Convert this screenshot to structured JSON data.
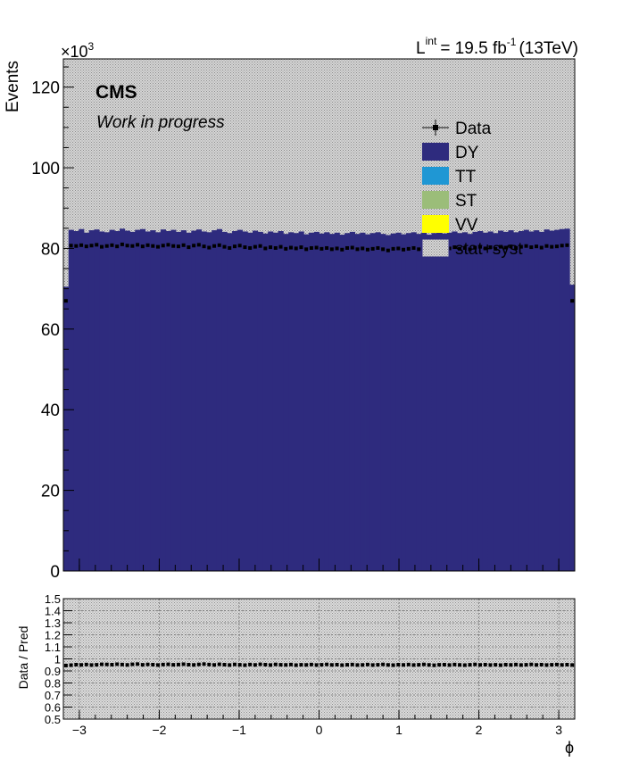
{
  "header": {
    "lumi_symbol": "L",
    "lumi_superscript": "int",
    "lumi_value": "= 19.5 fb",
    "lumi_exponent": "-1",
    "lumi_energy": "(13TeV)"
  },
  "labels": {
    "experiment": "CMS",
    "status": "Work in progress",
    "scale_factor": "×10",
    "scale_exponent": "3"
  },
  "colors": {
    "DY": "#2e2b7e",
    "TT": "#1f97d4",
    "ST": "#9bbd79",
    "VV": "#ffff00",
    "data": "#000000",
    "band": "#9a9a9a"
  },
  "chart_data": [
    {
      "type": "bar",
      "stacked": true,
      "title": "",
      "xlabel": "",
      "ylabel": "Events",
      "xlim": [
        -3.2,
        3.2
      ],
      "ylim": [
        0,
        127000
      ],
      "xticks": [
        "−3",
        "−2",
        "−1",
        "0",
        "1",
        "2",
        "3"
      ],
      "yticks": [
        "0",
        "20",
        "40",
        "60",
        "80",
        "100",
        "120"
      ],
      "y_scale_label": "×10^3",
      "n_bins": 100,
      "legend": {
        "placement": "top-right",
        "entries": [
          {
            "label": "Data",
            "style": "marker"
          },
          {
            "label": "DY",
            "style": "fill"
          },
          {
            "label": "TT",
            "style": "fill"
          },
          {
            "label": "ST",
            "style": "fill"
          },
          {
            "label": "VV",
            "style": "fill"
          },
          {
            "label": "stat+syst",
            "style": "hatch"
          }
        ]
      },
      "series": [
        {
          "name": "DY",
          "values_k": [
            70.5,
            84.6,
            84.3,
            84.8,
            83.9,
            84.5,
            84.7,
            84.2,
            84.0,
            84.6,
            84.3,
            84.9,
            84.4,
            84.1,
            84.6,
            84.8,
            84.2,
            84.5,
            84.0,
            84.7,
            84.3,
            84.6,
            84.1,
            84.5,
            83.9,
            84.4,
            84.7,
            84.2,
            84.0,
            84.5,
            84.8,
            84.1,
            83.8,
            84.3,
            84.6,
            84.2,
            83.9,
            84.4,
            84.1,
            83.7,
            84.2,
            83.9,
            84.3,
            83.6,
            84.0,
            83.8,
            84.2,
            83.5,
            83.9,
            84.1,
            83.7,
            84.0,
            83.6,
            83.9,
            83.4,
            83.8,
            84.1,
            83.6,
            83.9,
            83.5,
            83.8,
            84.0,
            83.6,
            83.3,
            83.7,
            83.9,
            83.5,
            83.8,
            84.0,
            83.6,
            83.9,
            83.4,
            83.8,
            84.1,
            83.7,
            83.9,
            84.2,
            83.8,
            84.0,
            83.6,
            84.1,
            84.3,
            83.9,
            84.2,
            83.8,
            84.4,
            84.1,
            84.5,
            84.0,
            84.3,
            84.6,
            84.2,
            84.5,
            84.1,
            84.7,
            84.4,
            84.6,
            84.8,
            84.9,
            71.0
          ]
        },
        {
          "name": "TT",
          "values_k": []
        },
        {
          "name": "ST",
          "values_k": []
        },
        {
          "name": "VV",
          "values_k": []
        },
        {
          "name": "Data",
          "values_k": [
            67.0,
            80.7,
            80.6,
            80.8,
            80.5,
            80.7,
            80.9,
            80.4,
            80.6,
            80.8,
            80.5,
            81.0,
            80.7,
            80.6,
            80.9,
            80.5,
            80.8,
            80.6,
            80.4,
            80.7,
            80.9,
            80.6,
            80.5,
            80.8,
            80.3,
            80.7,
            80.9,
            80.5,
            80.2,
            80.6,
            80.8,
            80.4,
            80.1,
            80.5,
            80.7,
            80.3,
            80.1,
            80.4,
            80.6,
            80.0,
            80.3,
            80.1,
            80.4,
            79.9,
            80.2,
            80.0,
            80.3,
            79.8,
            80.1,
            80.2,
            79.9,
            80.1,
            79.8,
            80.0,
            79.7,
            80.1,
            80.2,
            79.8,
            80.0,
            79.7,
            79.9,
            80.1,
            79.8,
            79.5,
            79.9,
            80.0,
            79.7,
            79.9,
            80.1,
            79.8,
            80.0,
            79.6,
            79.9,
            80.2,
            79.9,
            80.0,
            80.3,
            79.9,
            80.1,
            79.8,
            80.2,
            80.4,
            80.0,
            80.3,
            79.9,
            80.4,
            80.2,
            80.5,
            80.1,
            80.4,
            80.6,
            80.3,
            80.5,
            80.2,
            80.6,
            80.4,
            80.5,
            80.7,
            80.8,
            67.0
          ]
        }
      ]
    },
    {
      "type": "scatter",
      "title": "",
      "xlabel": "ϕ",
      "ylabel": "Data / Pred",
      "xlim": [
        -3.2,
        3.2
      ],
      "ylim": [
        0.5,
        1.5
      ],
      "xticks": [
        "−3",
        "−2",
        "−1",
        "0",
        "1",
        "2",
        "3"
      ],
      "yticks": [
        "0.5",
        "0.6",
        "0.7",
        "0.8",
        "0.9",
        "1",
        "1.1",
        "1.2",
        "1.3",
        "1.4",
        "1.5"
      ],
      "grid": true,
      "series": [
        {
          "name": "Data / Pred",
          "values": [
            0.945,
            0.948,
            0.952,
            0.95,
            0.953,
            0.949,
            0.951,
            0.955,
            0.954,
            0.952,
            0.956,
            0.953,
            0.95,
            0.955,
            0.957,
            0.951,
            0.954,
            0.952,
            0.949,
            0.953,
            0.955,
            0.951,
            0.953,
            0.956,
            0.952,
            0.95,
            0.954,
            0.957,
            0.953,
            0.95,
            0.955,
            0.952,
            0.949,
            0.954,
            0.951,
            0.948,
            0.953,
            0.95,
            0.955,
            0.952,
            0.949,
            0.954,
            0.951,
            0.95,
            0.953,
            0.948,
            0.951,
            0.95,
            0.953,
            0.949,
            0.951,
            0.954,
            0.95,
            0.952,
            0.948,
            0.951,
            0.953,
            0.949,
            0.95,
            0.953,
            0.949,
            0.951,
            0.954,
            0.95,
            0.948,
            0.952,
            0.95,
            0.953,
            0.949,
            0.951,
            0.954,
            0.95,
            0.947,
            0.951,
            0.952,
            0.949,
            0.953,
            0.95,
            0.948,
            0.951,
            0.954,
            0.95,
            0.952,
            0.949,
            0.951,
            0.948,
            0.952,
            0.95,
            0.953,
            0.949,
            0.951,
            0.954,
            0.95,
            0.952,
            0.949,
            0.951,
            0.953,
            0.95,
            0.952,
            0.949
          ]
        }
      ]
    }
  ]
}
